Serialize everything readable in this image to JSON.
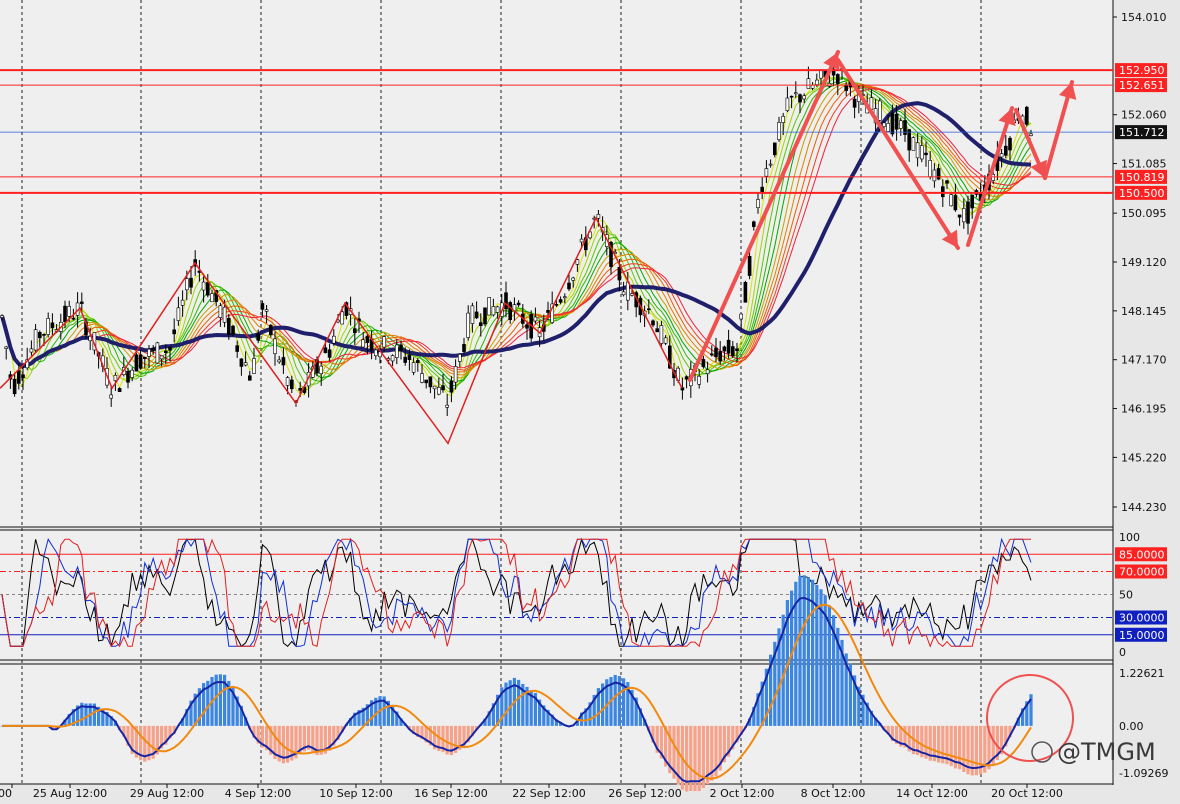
{
  "chart_data": [
    {
      "type": "candlestick",
      "panel": "price",
      "y_ticks": [
        "154.010",
        "152.060",
        "151.085",
        "150.095",
        "149.120",
        "148.145",
        "147.170",
        "146.195",
        "145.220",
        "144.230"
      ],
      "ylim": [
        143.93,
        154.28
      ],
      "current_price": {
        "value": 151.712,
        "label": "151.712",
        "color": "#111111"
      },
      "levels": [
        {
          "value": 152.95,
          "label": "152.950",
          "color": "#ff2020",
          "style": "thick"
        },
        {
          "value": 152.651,
          "label": "152.651",
          "color": "#ff2020",
          "style": "thin"
        },
        {
          "value": 150.819,
          "label": "150.819",
          "color": "#ff2020",
          "style": "thin"
        },
        {
          "value": 150.5,
          "label": "150.500",
          "color": "#ff2020",
          "style": "thick"
        }
      ],
      "zigzag": [
        {
          "x": 0,
          "y": 146.6
        },
        {
          "x": 0.12,
          "y": 148.2
        },
        {
          "x": 0.17,
          "y": 146.7
        },
        {
          "x": 0.25,
          "y": 147.5
        },
        {
          "x": 0.296,
          "y": 148.3
        },
        {
          "x": 0.312,
          "y": 147.3
        },
        {
          "x": 0.357,
          "y": 149.1
        },
        {
          "x": 0.418,
          "y": 148.2
        },
        {
          "x": 0.509,
          "y": 146.3
        },
        {
          "x": 0.597,
          "y": 148.3
        },
        {
          "x": 0.662,
          "y": 147.6
        },
        {
          "x": 0.751,
          "y": 146.2
        },
        {
          "x": 0.815,
          "y": 145.5
        },
        {
          "x": 0.918,
          "y": 148.3
        },
        {
          "x": 0.992,
          "y": 147.6
        },
        {
          "x": 1.15,
          "y": 150.0
        },
        {
          "x": 1.235,
          "y": 148.7
        },
        {
          "x": 1.308,
          "y": 146.6
        }
      ]
    },
    {
      "type": "line",
      "panel": "oscillator",
      "y_ticks": [
        "100",
        "50",
        "0"
      ],
      "ylim": [
        0,
        100
      ],
      "levels": [
        {
          "value": 85,
          "label": "85.0000",
          "color": "#ff2020"
        },
        {
          "value": 70,
          "label": "70.0000",
          "color": "#ff2020"
        },
        {
          "value": 30,
          "label": "30.0000",
          "color": "#1020c0"
        },
        {
          "value": 15,
          "label": "15.0000",
          "color": "#1020c0"
        }
      ]
    },
    {
      "type": "bar",
      "panel": "macd",
      "y_ticks": [
        "1.22621",
        "0.00",
        "-1.09269"
      ],
      "ylim": [
        -1.09269,
        1.22621
      ]
    }
  ],
  "x_labels": [
    "00",
    "25 Aug 12:00",
    "29 Aug 12:00",
    "4 Sep 12:00",
    "10 Sep 12:00",
    "16 Sep 12:00",
    "22 Sep 12:00",
    "26 Sep 12:00",
    "2 Oct 12:00",
    "8 Oct 12:00",
    "14 Oct 12:00",
    "20 Oct 12:00"
  ],
  "watermark": "@TMGM",
  "colors": {
    "bull": "#2ca02c",
    "bear": "#ff2020",
    "wick": "#000000",
    "ma_main": "#1f1f6b",
    "grid": "#000000",
    "arrow": "#f05050",
    "macd_pos": "#3a86e0",
    "macd_neg": "#f6a18a"
  }
}
